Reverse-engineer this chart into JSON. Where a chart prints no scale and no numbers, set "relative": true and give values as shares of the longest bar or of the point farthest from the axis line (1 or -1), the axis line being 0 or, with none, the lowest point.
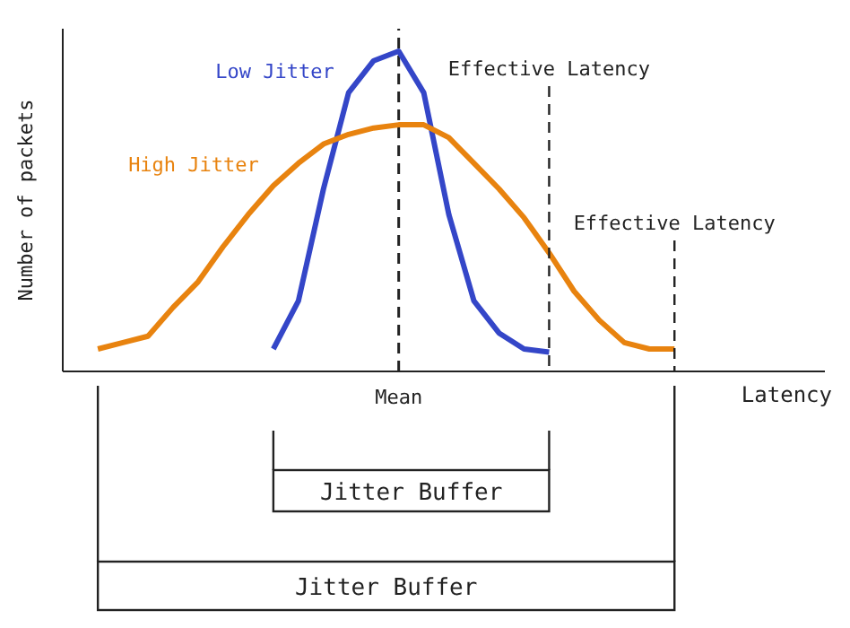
{
  "chart_data": {
    "type": "line",
    "relative": true,
    "xlabel": "Latency",
    "ylabel": "Number of packets",
    "categories": [
      null,
      null,
      null,
      null,
      null,
      null,
      null,
      null,
      null,
      null,
      null,
      null,
      null,
      null,
      null,
      null,
      null,
      null,
      null,
      null,
      null,
      null,
      null,
      null
    ],
    "series": [
      {
        "name": "Low Jitter",
        "color": "#3446c8",
        "values": [
          null,
          null,
          null,
          null,
          null,
          null,
          null,
          0.07,
          0.22,
          0.57,
          0.87,
          0.97,
          1,
          0.87,
          0.49,
          0.22,
          0.12,
          0.07,
          0.06,
          null,
          null,
          null,
          null,
          null
        ]
      },
      {
        "name": "High Jitter",
        "color": "#e8830f",
        "values": [
          0.07,
          0.09,
          0.11,
          0.2,
          0.28,
          0.39,
          0.49,
          0.58,
          0.65,
          0.71,
          0.74,
          0.76,
          0.77,
          0.77,
          0.73,
          0.65,
          0.57,
          0.48,
          0.37,
          0.25,
          0.16,
          0.09,
          0.07,
          0.07
        ]
      }
    ],
    "ref_lines": [
      {
        "axis": "x",
        "label": "Mean",
        "line_style": "dashed",
        "color": "#222222"
      }
    ],
    "annotations": [
      "Effective Latency",
      "Effective Latency",
      "Jitter Buffer",
      "Jitter Buffer"
    ],
    "legend": false,
    "grid": false,
    "marker": "none",
    "line_style": "solid"
  }
}
